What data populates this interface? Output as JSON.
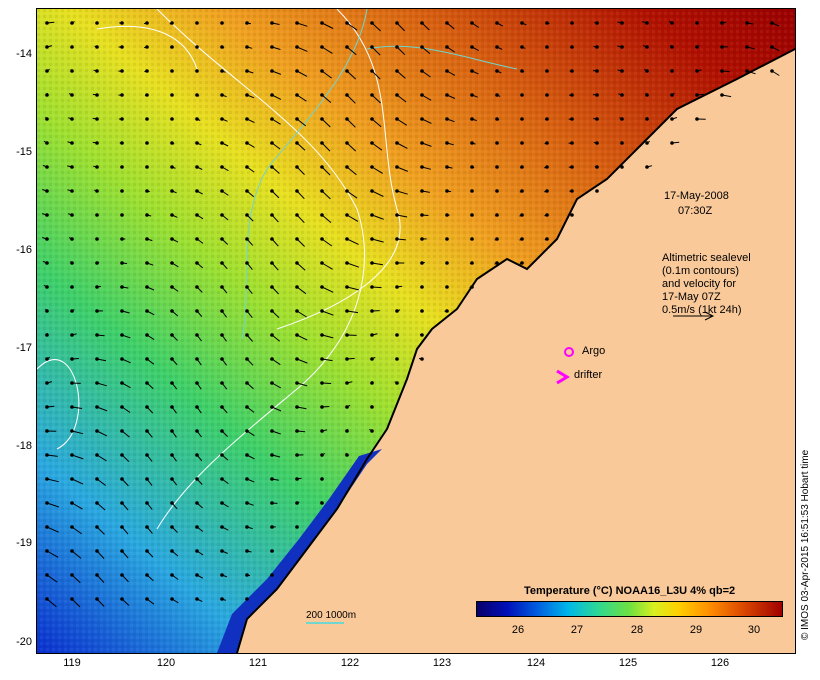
{
  "map": {
    "lat_ticks": [
      "-14",
      "-15",
      "-16",
      "-17",
      "-18",
      "-19",
      "-20"
    ],
    "lon_ticks": [
      "119",
      "120",
      "121",
      "122",
      "123",
      "124",
      "125",
      "126"
    ],
    "lat_range": [
      -20.1,
      -13.6
    ],
    "lon_range": [
      118.6,
      126.7
    ],
    "colors": {
      "land": "#f9c99a",
      "coast": "#000000",
      "contour": "#ffffff",
      "isobath": "#6fd6d0",
      "argo": "#ff00ff",
      "drifter": "#ff00ff"
    }
  },
  "annotations": {
    "timestamp_line1": "17-May-2008",
    "timestamp_line2": "07:30Z",
    "altimetry_line1": "Altimetric sealevel",
    "altimetry_line2": "(0.1m contours)",
    "altimetry_line3": "and velocity for",
    "altimetry_line4": "17-May 07Z",
    "altimetry_line5": "0.5m/s (1kt 24h)",
    "argo_label": "Argo",
    "drifter_label": "drifter",
    "scale_label": "200  1000m"
  },
  "colorbar": {
    "title": "Temperature (°C) NOAA16_L3U 4% qb=2",
    "ticks": [
      "26",
      "27",
      "28",
      "29",
      "30"
    ],
    "range": [
      25.1,
      30.5
    ]
  },
  "credit": "© IMOS 03-Apr-2015 16:51:53 Hobart time"
}
